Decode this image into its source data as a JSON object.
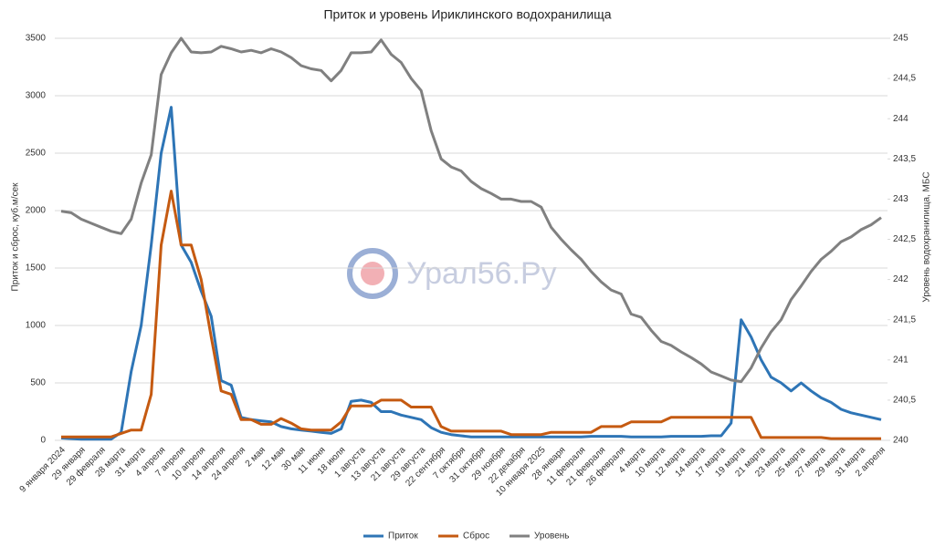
{
  "chart_data": {
    "type": "line",
    "title": "Приток и уровень Ириклинского водохранилища",
    "ylabel": "Приток и сброс, куб.м/сек",
    "y2label": "Уровень водохранилища, МБС",
    "watermark": "Урал56.Ру",
    "categories": [
      "9 января 2024",
      null,
      "29 января",
      null,
      "29 февраля",
      null,
      "28 марта",
      null,
      "31 марта",
      null,
      "4 апреля",
      null,
      "7 апреля",
      null,
      "10 апреля",
      null,
      "14 апреля",
      null,
      "24 апреля",
      null,
      "2 мая",
      null,
      "12 мая",
      null,
      "30 мая",
      null,
      "11 июня",
      null,
      "18 июля",
      null,
      "1 августа",
      null,
      "13 августа",
      null,
      "21 августа",
      null,
      "29 августа",
      null,
      "22 сентября",
      null,
      "7 октября",
      null,
      "31 октября",
      null,
      "29 ноября",
      null,
      "22 декабря",
      null,
      "10 января 2025",
      null,
      "28 января",
      null,
      "11 февраля",
      null,
      "21 февраля",
      null,
      "26 февраля",
      null,
      "4 марта",
      null,
      "10 марта",
      null,
      "12 марта",
      null,
      "14 марта",
      null,
      "17 марта",
      null,
      "19 марта",
      null,
      "21 марта",
      null,
      "23 марта",
      null,
      "25 марта",
      null,
      "27 марта",
      null,
      "29 марта",
      null,
      "31 марта",
      null,
      "2 апреля"
    ],
    "series": [
      {
        "name": "Приток",
        "color": "#2e75b6",
        "values": [
          20,
          15,
          10,
          10,
          10,
          10,
          70,
          600,
          1000,
          1700,
          2500,
          2900,
          1700,
          1550,
          1300,
          1080,
          520,
          480,
          200,
          180,
          170,
          160,
          120,
          100,
          90,
          80,
          70,
          60,
          100,
          340,
          350,
          330,
          250,
          250,
          220,
          200,
          180,
          110,
          70,
          50,
          40,
          30,
          30,
          30,
          30,
          30,
          30,
          30,
          30,
          30,
          30,
          30,
          30,
          35,
          35,
          35,
          35,
          30,
          30,
          30,
          30,
          35,
          35,
          35,
          35,
          40,
          40,
          150,
          1050,
          900,
          700,
          550,
          500,
          430,
          500,
          430,
          370,
          330,
          270,
          240,
          220,
          200,
          180
        ]
      },
      {
        "name": "Сброс",
        "color": "#c55a11",
        "values": [
          30,
          30,
          30,
          30,
          30,
          30,
          60,
          90,
          90,
          400,
          1700,
          2170,
          1700,
          1700,
          1400,
          900,
          430,
          400,
          180,
          180,
          140,
          140,
          190,
          150,
          100,
          90,
          90,
          90,
          160,
          300,
          300,
          300,
          350,
          350,
          350,
          290,
          290,
          290,
          120,
          80,
          80,
          80,
          80,
          80,
          80,
          50,
          50,
          50,
          50,
          70,
          70,
          70,
          70,
          70,
          120,
          120,
          120,
          160,
          160,
          160,
          160,
          200,
          200,
          200,
          200,
          200,
          200,
          200,
          200,
          200,
          25,
          25,
          25,
          25,
          25,
          25,
          25,
          15,
          15,
          15,
          15,
          15,
          15
        ]
      },
      {
        "name": "Уровень",
        "color": "#808080",
        "axis": "y2",
        "values": [
          242.85,
          242.83,
          242.75,
          242.7,
          242.65,
          242.6,
          242.57,
          242.75,
          243.2,
          243.55,
          244.55,
          244.82,
          245,
          244.83,
          244.82,
          244.83,
          244.9,
          244.87,
          244.83,
          244.85,
          244.82,
          244.87,
          244.83,
          244.76,
          244.66,
          244.62,
          244.6,
          244.47,
          244.6,
          244.82,
          244.82,
          244.83,
          244.98,
          244.8,
          244.7,
          244.5,
          244.35,
          243.85,
          243.5,
          243.4,
          243.35,
          243.22,
          243.13,
          243.07,
          243,
          243,
          242.97,
          242.97,
          242.9,
          242.65,
          242.5,
          242.37,
          242.25,
          242.1,
          241.97,
          241.87,
          241.82,
          241.57,
          241.53,
          241.37,
          241.23,
          241.18,
          241.1,
          241.03,
          240.95,
          240.85,
          240.8,
          240.75,
          240.73,
          240.9,
          241.15,
          241.35,
          241.5,
          241.75,
          241.92,
          242.1,
          242.25,
          242.35,
          242.47,
          242.53,
          242.62,
          242.68,
          242.77
        ]
      }
    ],
    "ylim": [
      0,
      3500
    ],
    "yticks": [
      0,
      500,
      1000,
      1500,
      2000,
      2500,
      3000,
      3500
    ],
    "y2lim": [
      240,
      245
    ],
    "y2ticks": [
      240,
      {
        "value": 240.5,
        "label": "240,5"
      },
      241,
      {
        "value": 241.5,
        "label": "241,5"
      },
      242,
      {
        "value": 242.5,
        "label": "242,5"
      },
      243,
      {
        "value": 243.5,
        "label": "243,5"
      },
      244,
      {
        "value": 244.5,
        "label": "244,5"
      },
      245
    ],
    "grid": true,
    "legend": "bottom"
  }
}
